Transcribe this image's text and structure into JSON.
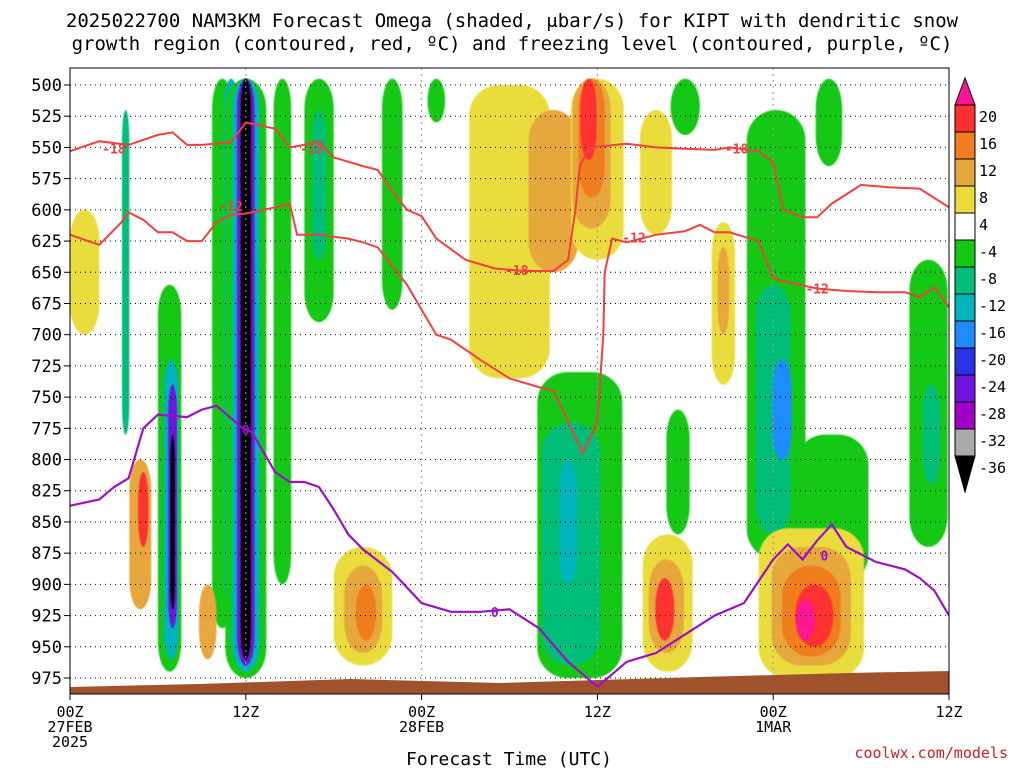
{
  "title_lines": [
    "2025022700 NAM3KM Forecast Omega (shaded, μbar/s) for KIPT with dendritic snow",
    "growth region (contoured, red, ºC) and freezing level (contoured, purple, ºC)"
  ],
  "footer": {
    "credit": "coolwx.com/models"
  },
  "chart_data": {
    "type": "heatmap",
    "title": "2025022700 NAM3KM Forecast Omega (shaded, μbar/s) for KIPT with dendritic snow growth region (contoured, red, ºC) and freezing level (contoured, purple, ºC)",
    "xlabel": "Forecast Time (UTC)",
    "ylabel": "",
    "x_unit": "forecast hour",
    "xlim": [
      0,
      60
    ],
    "y_axis": {
      "labels": [
        500,
        525,
        550,
        575,
        600,
        625,
        650,
        675,
        700,
        725,
        750,
        775,
        800,
        825,
        850,
        875,
        900,
        925,
        950,
        975
      ],
      "inverted": true,
      "range": [
        500,
        975
      ]
    },
    "x_ticks": [
      {
        "x": 0,
        "lines": [
          "00Z",
          "27FEB",
          "2025"
        ]
      },
      {
        "x": 12,
        "lines": [
          "12Z"
        ]
      },
      {
        "x": 24,
        "lines": [
          "00Z",
          "28FEB"
        ]
      },
      {
        "x": 36,
        "lines": [
          "12Z"
        ]
      },
      {
        "x": 48,
        "lines": [
          "00Z",
          "1MAR"
        ]
      },
      {
        "x": 60,
        "lines": [
          "12Z"
        ]
      }
    ],
    "colorbar": {
      "tick_labels": [
        20,
        16,
        12,
        8,
        4,
        -4,
        -8,
        -12,
        -16,
        -20,
        -24,
        -28,
        -32,
        -36
      ],
      "bins": [
        {
          "range": "> 20",
          "color": "#ff1493"
        },
        {
          "range": "16 to 20",
          "color": "#ff3030"
        },
        {
          "range": "12 to 16",
          "color": "#f07d1e"
        },
        {
          "range": "8 to 12",
          "color": "#e6a83c"
        },
        {
          "range": "4 to 8",
          "color": "#ebdc3c"
        },
        {
          "range": "-4 to 4",
          "color": "#ffffff"
        },
        {
          "range": "-8 to -4",
          "color": "#14c814"
        },
        {
          "range": "-12 to -8",
          "color": "#00be78"
        },
        {
          "range": "-16 to -12",
          "color": "#00b4be"
        },
        {
          "range": "-20 to -16",
          "color": "#1e8cff"
        },
        {
          "range": "-24 to -20",
          "color": "#2832e6"
        },
        {
          "range": "-28 to -24",
          "color": "#6e14dc"
        },
        {
          "range": "-32 to -28",
          "color": "#a000c8"
        },
        {
          "range": "-36 to -32",
          "color": "#aaaaaa"
        },
        {
          "range": "< -36",
          "color": "#000000"
        }
      ]
    },
    "omega_features": [
      {
        "t": 3.8,
        "p0": 520,
        "p1": 780,
        "w": 0.5,
        "level": -12
      },
      {
        "t": 6.8,
        "p0": 660,
        "p1": 970,
        "w": 1.6,
        "level": -8
      },
      {
        "t": 6.9,
        "p0": 720,
        "p1": 960,
        "w": 1.0,
        "level": -16
      },
      {
        "t": 7.0,
        "p0": 740,
        "p1": 935,
        "w": 0.6,
        "level": -28
      },
      {
        "t": 7.0,
        "p0": 780,
        "p1": 920,
        "w": 0.3,
        "level": -36
      },
      {
        "t": 10.4,
        "p0": 495,
        "p1": 935,
        "w": 1.4,
        "level": -8
      },
      {
        "t": 11.0,
        "p0": 495,
        "p1": 920,
        "w": 1.0,
        "level": -16
      },
      {
        "t": 12.0,
        "p0": 495,
        "p1": 975,
        "w": 2.8,
        "level": -8
      },
      {
        "t": 12.0,
        "p0": 495,
        "p1": 970,
        "w": 1.9,
        "level": -16
      },
      {
        "t": 12.0,
        "p0": 495,
        "p1": 965,
        "w": 1.2,
        "level": -28
      },
      {
        "t": 12.0,
        "p0": 495,
        "p1": 960,
        "w": 0.7,
        "level": -36
      },
      {
        "t": 14.5,
        "p0": 495,
        "p1": 900,
        "w": 1.2,
        "level": -8
      },
      {
        "t": 17.0,
        "p0": 495,
        "p1": 690,
        "w": 2.0,
        "level": -8
      },
      {
        "t": 17.0,
        "p0": 520,
        "p1": 640,
        "w": 1.0,
        "level": -12
      },
      {
        "t": 22.0,
        "p0": 495,
        "p1": 680,
        "w": 1.4,
        "level": -8
      },
      {
        "t": 25.0,
        "p0": 495,
        "p1": 530,
        "w": 1.2,
        "level": -8
      },
      {
        "t": 34.8,
        "p0": 730,
        "p1": 975,
        "w": 5.8,
        "level": -8
      },
      {
        "t": 34.2,
        "p0": 770,
        "p1": 965,
        "w": 4.0,
        "level": -12
      },
      {
        "t": 34.0,
        "p0": 800,
        "p1": 900,
        "w": 1.2,
        "level": -16
      },
      {
        "t": 41.5,
        "p0": 760,
        "p1": 860,
        "w": 1.6,
        "level": -8
      },
      {
        "t": 42.0,
        "p0": 495,
        "p1": 540,
        "w": 2.0,
        "level": -8
      },
      {
        "t": 48.2,
        "p0": 520,
        "p1": 880,
        "w": 4.0,
        "level": -8
      },
      {
        "t": 48.0,
        "p0": 660,
        "p1": 860,
        "w": 2.4,
        "level": -12
      },
      {
        "t": 48.6,
        "p0": 720,
        "p1": 800,
        "w": 1.3,
        "level": -20
      },
      {
        "t": 51.8,
        "p0": 495,
        "p1": 565,
        "w": 1.8,
        "level": -8
      },
      {
        "t": 52.0,
        "p0": 780,
        "p1": 900,
        "w": 5.0,
        "level": -8
      },
      {
        "t": 58.6,
        "p0": 640,
        "p1": 870,
        "w": 2.6,
        "level": -8
      },
      {
        "t": 58.8,
        "p0": 740,
        "p1": 820,
        "w": 1.2,
        "level": -12
      },
      {
        "t": 4.8,
        "p0": 800,
        "p1": 920,
        "w": 1.5,
        "level": 8
      },
      {
        "t": 5.0,
        "p0": 810,
        "p1": 870,
        "w": 0.7,
        "level": 16
      },
      {
        "t": 9.4,
        "p0": 900,
        "p1": 960,
        "w": 1.2,
        "level": 8
      },
      {
        "t": 20.0,
        "p0": 870,
        "p1": 965,
        "w": 4.0,
        "level": 4
      },
      {
        "t": 20.0,
        "p0": 885,
        "p1": 955,
        "w": 2.6,
        "level": 8
      },
      {
        "t": 20.2,
        "p0": 900,
        "p1": 945,
        "w": 1.4,
        "level": 12
      },
      {
        "t": 30.0,
        "p0": 500,
        "p1": 735,
        "w": 5.5,
        "level": 4
      },
      {
        "t": 33.0,
        "p0": 520,
        "p1": 650,
        "w": 3.4,
        "level": 8
      },
      {
        "t": 36.0,
        "p0": 495,
        "p1": 640,
        "w": 3.6,
        "level": 4
      },
      {
        "t": 35.6,
        "p0": 495,
        "p1": 615,
        "w": 2.6,
        "level": 8
      },
      {
        "t": 35.6,
        "p0": 495,
        "p1": 590,
        "w": 1.8,
        "level": 12
      },
      {
        "t": 35.4,
        "p0": 495,
        "p1": 560,
        "w": 1.1,
        "level": 16
      },
      {
        "t": 40.0,
        "p0": 520,
        "p1": 620,
        "w": 2.2,
        "level": 4
      },
      {
        "t": 44.6,
        "p0": 610,
        "p1": 740,
        "w": 1.6,
        "level": 4
      },
      {
        "t": 44.6,
        "p0": 630,
        "p1": 700,
        "w": 0.8,
        "level": 8
      },
      {
        "t": 40.8,
        "p0": 860,
        "p1": 970,
        "w": 3.4,
        "level": 4
      },
      {
        "t": 40.7,
        "p0": 880,
        "p1": 955,
        "w": 2.4,
        "level": 8
      },
      {
        "t": 40.6,
        "p0": 895,
        "p1": 945,
        "w": 1.3,
        "level": 16
      },
      {
        "t": 50.6,
        "p0": 855,
        "p1": 975,
        "w": 7.2,
        "level": 4
      },
      {
        "t": 50.6,
        "p0": 870,
        "p1": 965,
        "w": 5.4,
        "level": 8
      },
      {
        "t": 50.6,
        "p0": 885,
        "p1": 958,
        "w": 4.0,
        "level": 12
      },
      {
        "t": 50.8,
        "p0": 900,
        "p1": 950,
        "w": 2.6,
        "level": 16
      },
      {
        "t": 50.2,
        "p0": 912,
        "p1": 945,
        "w": 1.3,
        "level": 20
      },
      {
        "t": 1.0,
        "p0": 600,
        "p1": 700,
        "w": 2.0,
        "level": 4
      }
    ],
    "dgz_contours": [
      {
        "label": "-18",
        "points": [
          [
            0,
            553
          ],
          [
            2,
            545
          ],
          [
            4,
            548
          ],
          [
            6,
            540
          ],
          [
            7,
            538
          ],
          [
            8,
            548
          ],
          [
            9,
            548
          ],
          [
            11,
            546
          ],
          [
            12,
            530
          ],
          [
            14,
            535
          ],
          [
            15,
            550
          ],
          [
            16,
            548
          ],
          [
            17,
            545
          ],
          [
            18,
            558
          ],
          [
            20,
            565
          ],
          [
            21,
            568
          ],
          [
            22,
            585
          ],
          [
            23,
            600
          ],
          [
            24,
            605
          ],
          [
            25,
            623
          ],
          [
            27,
            640
          ],
          [
            29,
            647
          ],
          [
            31,
            649
          ],
          [
            33,
            649
          ],
          [
            34,
            640
          ],
          [
            34.5,
            600
          ],
          [
            34.8,
            565
          ],
          [
            35.5,
            550
          ],
          [
            38,
            547
          ],
          [
            40,
            550
          ],
          [
            42,
            551
          ],
          [
            44,
            552
          ],
          [
            45,
            550
          ],
          [
            47,
            553
          ],
          [
            48,
            562
          ],
          [
            48.7,
            600
          ],
          [
            50,
            606
          ],
          [
            51,
            606
          ],
          [
            52,
            595
          ],
          [
            54,
            580
          ],
          [
            56,
            582
          ],
          [
            58,
            583
          ],
          [
            60,
            598
          ]
        ]
      },
      {
        "label": "-12",
        "points": [
          [
            0,
            620
          ],
          [
            2,
            628
          ],
          [
            3.5,
            610
          ],
          [
            4,
            602
          ],
          [
            5,
            608
          ],
          [
            6,
            618
          ],
          [
            7,
            618
          ],
          [
            8,
            625
          ],
          [
            9,
            625
          ],
          [
            10,
            610
          ],
          [
            11,
            604
          ],
          [
            12,
            603
          ],
          [
            14,
            598
          ],
          [
            15,
            595
          ],
          [
            15.5,
            620
          ],
          [
            17,
            620
          ],
          [
            19,
            623
          ],
          [
            20,
            626
          ],
          [
            21,
            630
          ],
          [
            22,
            645
          ],
          [
            23,
            660
          ],
          [
            24,
            680
          ],
          [
            25,
            700
          ],
          [
            26,
            704
          ],
          [
            28,
            720
          ],
          [
            30,
            735
          ],
          [
            32,
            742
          ],
          [
            33,
            745
          ],
          [
            34,
            770
          ],
          [
            35,
            795
          ],
          [
            36,
            770
          ],
          [
            36.4,
            700
          ],
          [
            36.5,
            650
          ],
          [
            37,
            623
          ],
          [
            38,
            626
          ],
          [
            40,
            620
          ],
          [
            42,
            617
          ],
          [
            43,
            612
          ],
          [
            44,
            618
          ],
          [
            45,
            618
          ],
          [
            47,
            625
          ],
          [
            48,
            655
          ],
          [
            49,
            658
          ],
          [
            51,
            663
          ],
          [
            53,
            665
          ],
          [
            55,
            666
          ],
          [
            57,
            666
          ],
          [
            58,
            670
          ],
          [
            59,
            662
          ],
          [
            60,
            678
          ]
        ]
      }
    ],
    "dgz_label_positions": [
      [
        3,
        551
      ],
      [
        16.5,
        551
      ],
      [
        45.5,
        551
      ],
      [
        11,
        597
      ],
      [
        38.5,
        622
      ],
      [
        30.5,
        648
      ],
      [
        51,
        663
      ]
    ],
    "freezing_level": {
      "label": "0",
      "points": [
        [
          0,
          837
        ],
        [
          2,
          832
        ],
        [
          3,
          822
        ],
        [
          4,
          815
        ],
        [
          5,
          775
        ],
        [
          6,
          764
        ],
        [
          8,
          766
        ],
        [
          9,
          760
        ],
        [
          10,
          757
        ],
        [
          11,
          767
        ],
        [
          11.8,
          775
        ],
        [
          12.4,
          778
        ],
        [
          13,
          790
        ],
        [
          14,
          810
        ],
        [
          15,
          818
        ],
        [
          16,
          818
        ],
        [
          17,
          822
        ],
        [
          18,
          840
        ],
        [
          19,
          860
        ],
        [
          20,
          872
        ],
        [
          22,
          890
        ],
        [
          24,
          915
        ],
        [
          26,
          922
        ],
        [
          28,
          922
        ],
        [
          30,
          920
        ],
        [
          32,
          935
        ],
        [
          34,
          962
        ],
        [
          36,
          982
        ],
        [
          38,
          962
        ],
        [
          40,
          955
        ],
        [
          42,
          940
        ],
        [
          44,
          925
        ],
        [
          46,
          915
        ],
        [
          48,
          880
        ],
        [
          49,
          868
        ],
        [
          50,
          880
        ],
        [
          51,
          865
        ],
        [
          52,
          852
        ],
        [
          53,
          870
        ],
        [
          54,
          876
        ],
        [
          55,
          882
        ],
        [
          57,
          888
        ],
        [
          58,
          895
        ],
        [
          59,
          905
        ],
        [
          60,
          925
        ]
      ]
    },
    "freezing_label_positions": [
      [
        12,
        776
      ],
      [
        29,
        922
      ],
      [
        51.5,
        877
      ]
    ]
  }
}
